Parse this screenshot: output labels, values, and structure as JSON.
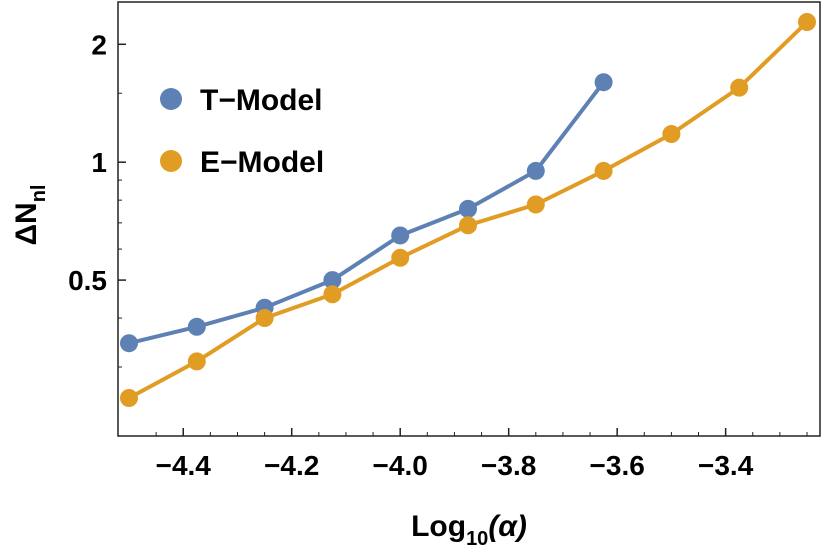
{
  "chart_data": {
    "type": "line",
    "title": "",
    "xlabel": {
      "main": "Log",
      "sub": "10",
      "arg": "(α)"
    },
    "ylabel": {
      "main": "ΔN",
      "sub": "nl"
    },
    "xlim": [
      -4.5,
      -3.25
    ],
    "ylim": [
      0.2,
      2.4
    ],
    "yscale": "log",
    "x_ticks": [
      {
        "value": -4.4,
        "label": "−4.4"
      },
      {
        "value": -4.2,
        "label": "−4.2"
      },
      {
        "value": -4.0,
        "label": "−4.0"
      },
      {
        "value": -3.8,
        "label": "−3.8"
      },
      {
        "value": -3.6,
        "label": "−3.6"
      },
      {
        "value": -3.4,
        "label": "−3.4"
      }
    ],
    "y_ticks": [
      {
        "value": 0.5,
        "label": "0.5"
      },
      {
        "value": 1,
        "label": "1"
      },
      {
        "value": 2,
        "label": "2"
      }
    ],
    "legend_position": "top-left",
    "series": [
      {
        "name": "T−Model",
        "color": "#5e81b5",
        "x": [
          -4.5,
          -4.375,
          -4.25,
          -4.125,
          -4.0,
          -3.875,
          -3.75,
          -3.625
        ],
        "values": [
          0.345,
          0.38,
          0.425,
          0.5,
          0.65,
          0.76,
          0.95,
          1.6
        ]
      },
      {
        "name": "E−Model",
        "color": "#e19c24",
        "x": [
          -4.5,
          -4.375,
          -4.25,
          -4.125,
          -4.0,
          -3.875,
          -3.75,
          -3.625,
          -3.5,
          -3.375,
          -3.25
        ],
        "values": [
          0.25,
          0.31,
          0.4,
          0.46,
          0.57,
          0.69,
          0.78,
          0.95,
          1.18,
          1.55,
          2.28
        ]
      }
    ]
  }
}
